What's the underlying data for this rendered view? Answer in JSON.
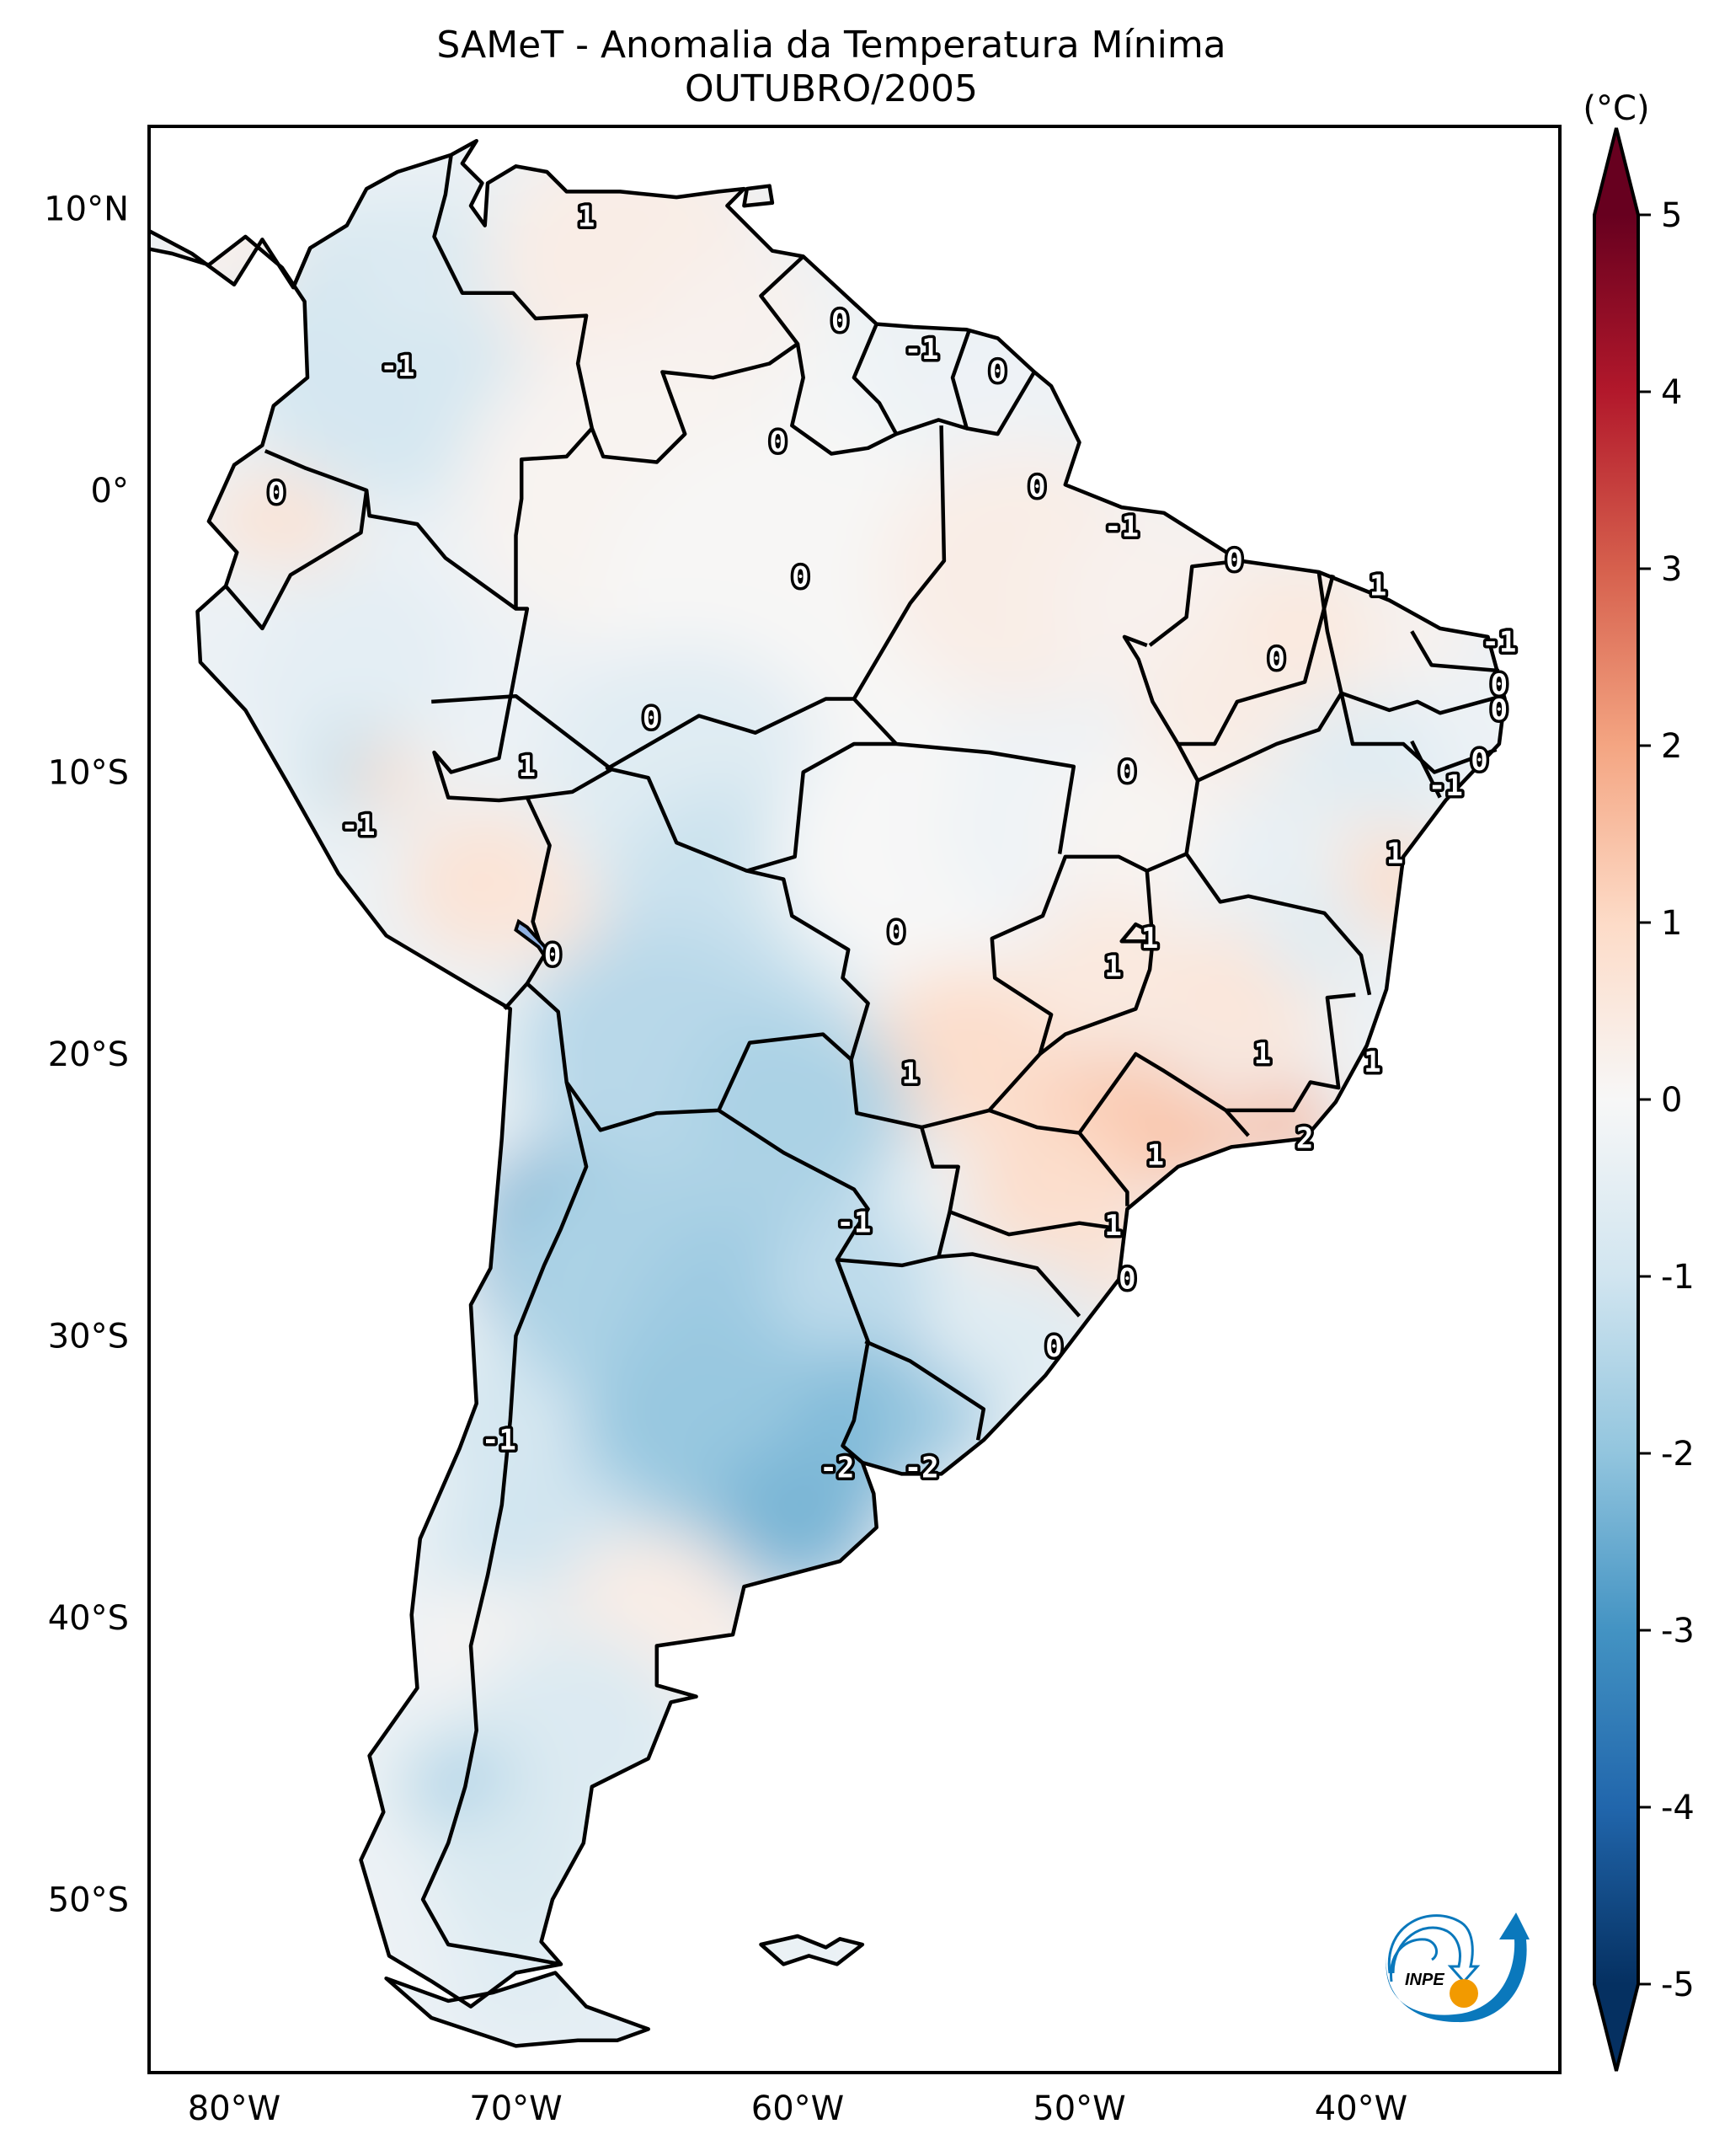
{
  "title": {
    "line1": "SAMeT - Anomalia da Temperatura Mínima",
    "line2": "OUTUBRO/2005"
  },
  "map": {
    "extent": {
      "lon_min": -83.0,
      "lon_max": -33.0,
      "lat_min": -56.2,
      "lat_max": 12.9
    },
    "lat_ticks": [
      {
        "value": 10,
        "label": "10°N"
      },
      {
        "value": 0,
        "label": "0°"
      },
      {
        "value": -10,
        "label": "10°S"
      },
      {
        "value": -20,
        "label": "20°S"
      },
      {
        "value": -30,
        "label": "30°S"
      },
      {
        "value": -40,
        "label": "40°S"
      },
      {
        "value": -50,
        "label": "50°S"
      }
    ],
    "lon_ticks": [
      {
        "value": -80,
        "label": "80°W"
      },
      {
        "value": -70,
        "label": "70°W"
      },
      {
        "value": -60,
        "label": "60°W"
      },
      {
        "value": -50,
        "label": "50°W"
      },
      {
        "value": -40,
        "label": "40°W"
      }
    ],
    "contour_labels": [
      {
        "lon": -67.5,
        "lat": 9.7,
        "text": "1"
      },
      {
        "lon": -74.2,
        "lat": 4.4,
        "text": "-1"
      },
      {
        "lon": -78.5,
        "lat": -0.1,
        "text": "0"
      },
      {
        "lon": -60.7,
        "lat": 1.7,
        "text": "0"
      },
      {
        "lon": -59.9,
        "lat": -3.1,
        "text": "0"
      },
      {
        "lon": -58.5,
        "lat": 6.0,
        "text": "0"
      },
      {
        "lon": -55.6,
        "lat": 5.0,
        "text": "-1"
      },
      {
        "lon": -52.9,
        "lat": 4.2,
        "text": "0"
      },
      {
        "lon": -51.5,
        "lat": 0.1,
        "text": "0"
      },
      {
        "lon": -48.5,
        "lat": -1.3,
        "text": "-1"
      },
      {
        "lon": -44.5,
        "lat": -2.5,
        "text": "0"
      },
      {
        "lon": -43.0,
        "lat": -6.0,
        "text": "0"
      },
      {
        "lon": -39.4,
        "lat": -3.4,
        "text": "1"
      },
      {
        "lon": -35.1,
        "lat": -5.4,
        "text": "-1"
      },
      {
        "lon": -35.1,
        "lat": -6.9,
        "text": "0"
      },
      {
        "lon": -35.1,
        "lat": -7.8,
        "text": "0"
      },
      {
        "lon": -35.8,
        "lat": -9.6,
        "text": "0"
      },
      {
        "lon": -37.0,
        "lat": -10.5,
        "text": "-1"
      },
      {
        "lon": -38.8,
        "lat": -12.9,
        "text": "1"
      },
      {
        "lon": -48.3,
        "lat": -10.0,
        "text": "0"
      },
      {
        "lon": -65.2,
        "lat": -8.1,
        "text": "0"
      },
      {
        "lon": -69.6,
        "lat": -9.8,
        "text": "1"
      },
      {
        "lon": -75.6,
        "lat": -11.9,
        "text": "-1"
      },
      {
        "lon": -68.7,
        "lat": -16.5,
        "text": "0"
      },
      {
        "lon": -56.5,
        "lat": -15.7,
        "text": "0"
      },
      {
        "lon": -47.5,
        "lat": -15.9,
        "text": "1"
      },
      {
        "lon": -48.8,
        "lat": -16.9,
        "text": "1"
      },
      {
        "lon": -56.0,
        "lat": -20.7,
        "text": "1"
      },
      {
        "lon": -43.5,
        "lat": -20.0,
        "text": "1"
      },
      {
        "lon": -39.6,
        "lat": -20.3,
        "text": "1"
      },
      {
        "lon": -42.0,
        "lat": -23.0,
        "text": "2"
      },
      {
        "lon": -47.3,
        "lat": -23.6,
        "text": "1"
      },
      {
        "lon": -48.8,
        "lat": -26.1,
        "text": "1"
      },
      {
        "lon": -48.3,
        "lat": -28.0,
        "text": "0"
      },
      {
        "lon": -50.9,
        "lat": -30.4,
        "text": "0"
      },
      {
        "lon": -58.0,
        "lat": -26.0,
        "text": "-1"
      },
      {
        "lon": -70.6,
        "lat": -33.7,
        "text": "-1"
      },
      {
        "lon": -58.6,
        "lat": -34.7,
        "text": "-2"
      },
      {
        "lon": -55.6,
        "lat": -34.7,
        "text": "-2"
      }
    ],
    "lake_color": "#8fb0e0"
  },
  "colorbar": {
    "unit_label": "(°C)",
    "vmin": -5,
    "vmax": 5,
    "ticks": [
      {
        "value": 5,
        "label": "5"
      },
      {
        "value": 4,
        "label": "4"
      },
      {
        "value": 3,
        "label": "3"
      },
      {
        "value": 2,
        "label": "2"
      },
      {
        "value": 1,
        "label": "1"
      },
      {
        "value": 0,
        "label": "0"
      },
      {
        "value": -1,
        "label": "-1"
      },
      {
        "value": -2,
        "label": "-2"
      },
      {
        "value": -3,
        "label": "-3"
      },
      {
        "value": -4,
        "label": "-4"
      },
      {
        "value": -5,
        "label": "-5"
      }
    ],
    "colormap": [
      "#053061",
      "#2166ac",
      "#4393c3",
      "#92c5de",
      "#d1e5f0",
      "#f7f7f7",
      "#fddbc7",
      "#f4a582",
      "#d6604d",
      "#b2182b",
      "#67001f"
    ],
    "extend": "both"
  },
  "logo": {
    "text": "INPE",
    "blue": "#0a78bc",
    "orange": "#f29a00"
  }
}
